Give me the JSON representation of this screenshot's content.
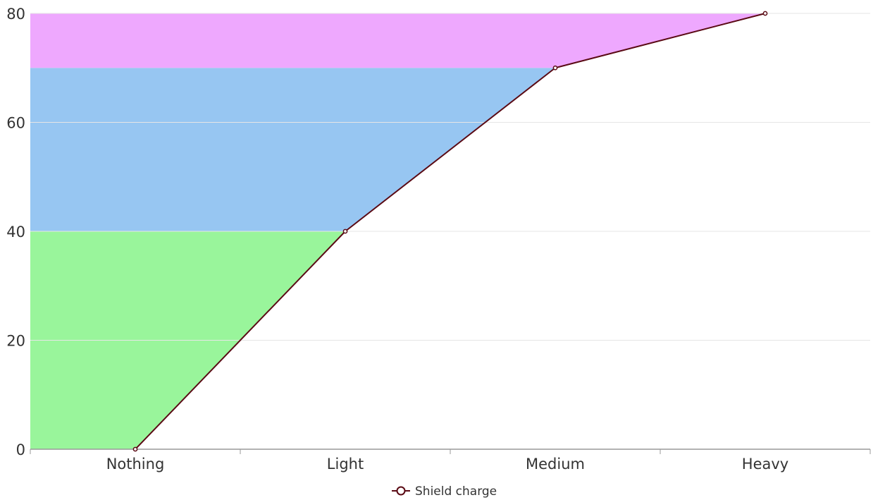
{
  "chart_data": {
    "type": "line",
    "categories": [
      "Nothing",
      "Light",
      "Medium",
      "Heavy"
    ],
    "series": [
      {
        "name": "Shield charge",
        "values": [
          0,
          40,
          70,
          80
        ]
      }
    ],
    "bands": [
      {
        "from": 0,
        "to": 40,
        "color": "#99f59b"
      },
      {
        "from": 40,
        "to": 70,
        "color": "#97c6f2"
      },
      {
        "from": 70,
        "to": 80,
        "color": "#eea8fe"
      }
    ],
    "yticks": [
      0,
      20,
      40,
      60,
      80
    ],
    "ylim": [
      0,
      80
    ],
    "grid": true,
    "legend_position": "bottom-center",
    "colors": {
      "line": "#5a0a14",
      "point_fill": "#ffffff",
      "grid": "#e6e6e6",
      "axis": "#999999"
    }
  }
}
